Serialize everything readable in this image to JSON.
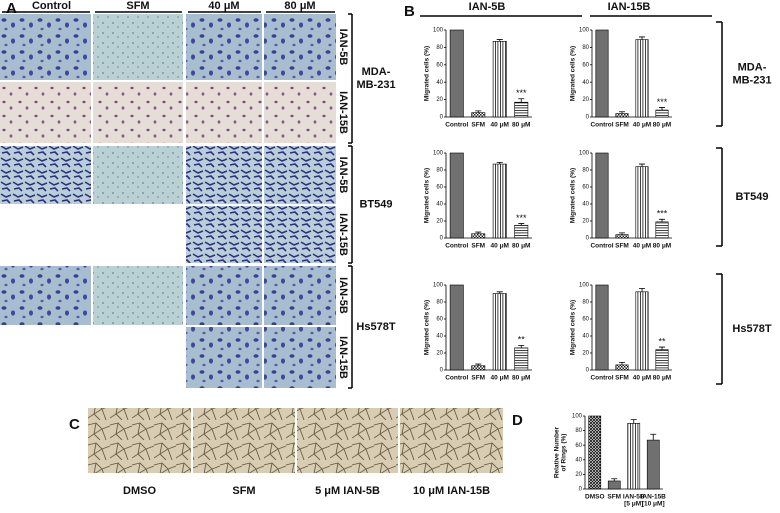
{
  "panel_labels": [
    "A",
    "B",
    "C",
    "D"
  ],
  "panel_a": {
    "columns": [
      "Control",
      "SFM",
      "40 μM",
      "80 μM"
    ],
    "cell_lines": [
      {
        "name": "MDA-\nMB-231",
        "rows": [
          "IAN-5B",
          "IAN-15B"
        ]
      },
      {
        "name": "BT549",
        "rows": [
          "IAN-5B",
          "IAN-15B"
        ]
      },
      {
        "name": "Hs578T",
        "rows": [
          "IAN-5B",
          "IAN-15B"
        ]
      }
    ]
  },
  "panel_b": {
    "columns": [
      "IAN-5B",
      "IAN-15B"
    ],
    "rows": [
      "MDA-\nMB-231",
      "BT549",
      "Hs578T"
    ]
  },
  "panel_c": {
    "labels": [
      "DMSO",
      "SFM",
      "5 μM IAN-5B",
      "10 μM IAN-15B"
    ]
  },
  "chart_data": [
    {
      "type": "bar",
      "ylabel": "Migrated cells (%)",
      "categories": [
        "Control",
        "SFM",
        "40 μM",
        "80 μM"
      ],
      "values": [
        100,
        5,
        87,
        17
      ],
      "errors": [
        0,
        2,
        2,
        4
      ],
      "significance": [
        null,
        null,
        null,
        "***"
      ],
      "color": "#707070",
      "bar_styles": [
        "solid",
        "checker",
        "vertical",
        "horizontal"
      ],
      "ylim": [
        0,
        100
      ],
      "yticks": [
        0,
        20,
        40,
        60,
        80,
        100
      ]
    },
    {
      "type": "bar",
      "ylabel": "Migrated cells (%)",
      "categories": [
        "Control",
        "SFM",
        "40 μM",
        "80 μM"
      ],
      "values": [
        100,
        4,
        89,
        8
      ],
      "errors": [
        0,
        2,
        3,
        3
      ],
      "significance": [
        null,
        null,
        null,
        "***"
      ],
      "color": "#707070",
      "bar_styles": [
        "solid",
        "checker",
        "vertical",
        "horizontal"
      ],
      "ylim": [
        0,
        100
      ],
      "yticks": [
        0,
        20,
        40,
        60,
        80,
        100
      ]
    },
    {
      "type": "bar",
      "ylabel": "Migrated cells (%)",
      "categories": [
        "Control",
        "SFM",
        "40 μM",
        "80 μM"
      ],
      "values": [
        100,
        5,
        87,
        15
      ],
      "errors": [
        0,
        2,
        2,
        2
      ],
      "significance": [
        null,
        null,
        null,
        "***"
      ],
      "color": "#707070",
      "bar_styles": [
        "solid",
        "checker",
        "vertical",
        "horizontal"
      ],
      "ylim": [
        0,
        100
      ],
      "yticks": [
        0,
        20,
        40,
        60,
        80,
        100
      ]
    },
    {
      "type": "bar",
      "ylabel": "Migrated cells (%)",
      "categories": [
        "Control",
        "SFM",
        "40 μM",
        "80 μM"
      ],
      "values": [
        100,
        4,
        84,
        19
      ],
      "errors": [
        0,
        2,
        3,
        3
      ],
      "significance": [
        null,
        null,
        null,
        "***"
      ],
      "color": "#707070",
      "bar_styles": [
        "solid",
        "checker",
        "vertical",
        "horizontal"
      ],
      "ylim": [
        0,
        100
      ],
      "yticks": [
        0,
        20,
        40,
        60,
        80,
        100
      ]
    },
    {
      "type": "bar",
      "ylabel": "Migrated cells (%)",
      "categories": [
        "Control",
        "SFM",
        "40 μM",
        "80 μM"
      ],
      "values": [
        100,
        5,
        90,
        26
      ],
      "errors": [
        0,
        2,
        2,
        3
      ],
      "significance": [
        null,
        null,
        null,
        "**"
      ],
      "color": "#707070",
      "bar_styles": [
        "solid",
        "checker",
        "vertical",
        "horizontal"
      ],
      "ylim": [
        0,
        100
      ],
      "yticks": [
        0,
        20,
        40,
        60,
        80,
        100
      ]
    },
    {
      "type": "bar",
      "ylabel": "Migrated cells (%)",
      "categories": [
        "Control",
        "SFM",
        "40 μM",
        "80 μM"
      ],
      "values": [
        100,
        6,
        92,
        24
      ],
      "errors": [
        0,
        3,
        4,
        3
      ],
      "significance": [
        null,
        null,
        null,
        "**"
      ],
      "color": "#707070",
      "bar_styles": [
        "solid",
        "checker",
        "vertical",
        "horizontal"
      ],
      "ylim": [
        0,
        100
      ],
      "yticks": [
        0,
        20,
        40,
        60,
        80,
        100
      ]
    },
    {
      "type": "bar",
      "ylabel": "Relative Number\nof Rings (%)",
      "categories": [
        "DMSO",
        "SFM",
        "IAN-5B\n[5 μM]",
        "IAN-15B\n[10 μM]"
      ],
      "values": [
        100,
        11,
        90,
        67
      ],
      "errors": [
        0,
        3,
        5,
        8
      ],
      "significance": [
        null,
        null,
        null,
        null
      ],
      "color": "#707070",
      "bar_styles": [
        "crosshatch",
        "solid",
        "vertical",
        "solid"
      ],
      "ylim": [
        0,
        100
      ],
      "yticks": [
        0,
        20,
        40,
        60,
        80,
        100
      ]
    }
  ]
}
